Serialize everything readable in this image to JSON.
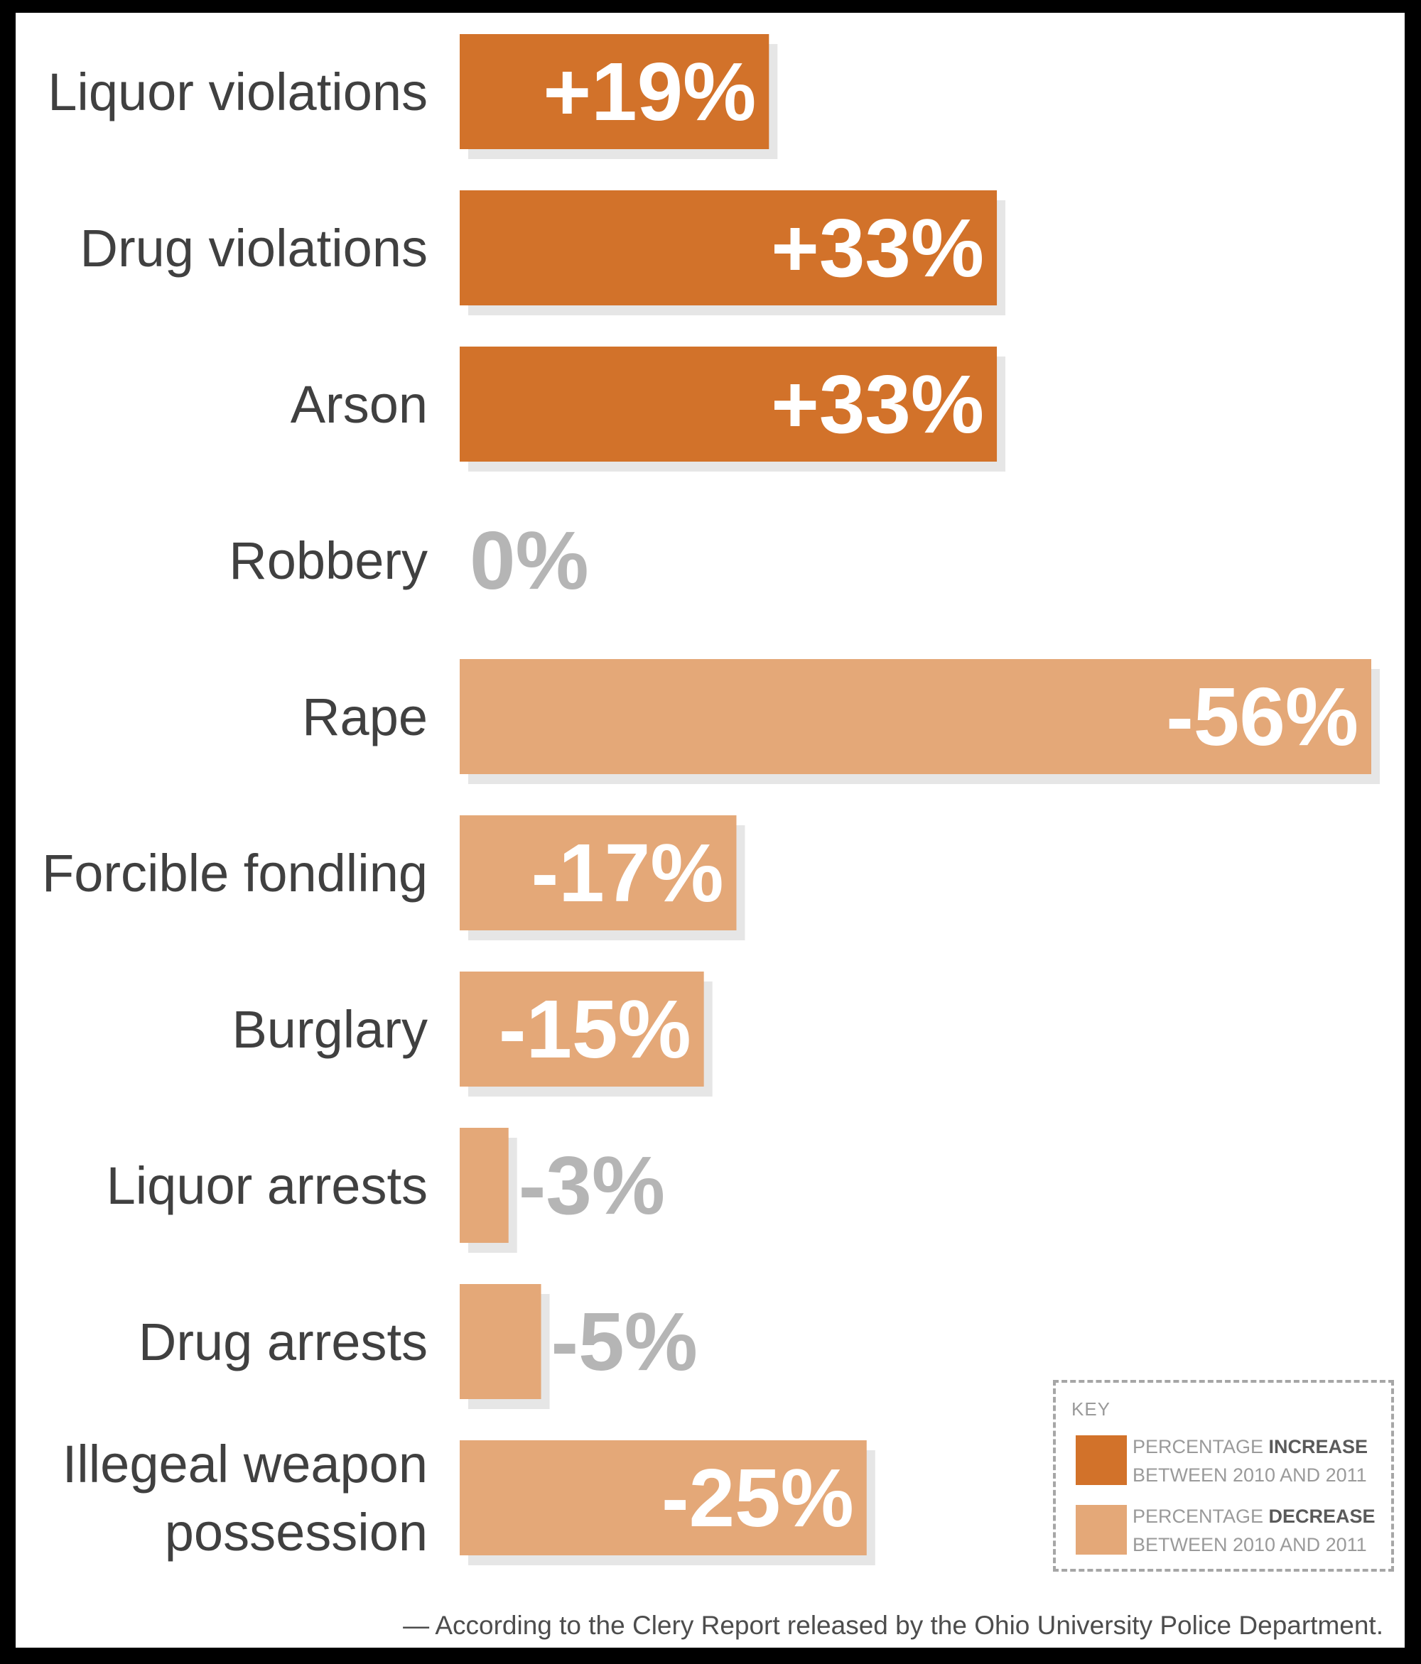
{
  "chart_data": {
    "type": "bar",
    "orientation": "horizontal",
    "categories": [
      "Liquor violations",
      "Drug violations",
      "Arson",
      "Robbery",
      "Rape",
      "Forcible fondling",
      "Burglary",
      "Liquor arrests",
      "Drug arrests",
      "Illegeal weapon possession"
    ],
    "values": [
      19,
      33,
      33,
      0,
      -56,
      -17,
      -15,
      -3,
      -5,
      -25
    ],
    "value_labels": [
      "+19%",
      "+33%",
      "+33%",
      "0%",
      "-56%",
      "-17%",
      "-15%",
      "-3%",
      "-5%",
      "-25%"
    ],
    "colors": {
      "increase": "#D2722A",
      "decrease": "#E4A878",
      "outside_label": "#B5B5B5",
      "inside_label": "#FFFFFF",
      "category_text": "#404040"
    },
    "xlim": [
      0,
      56
    ],
    "grid": false,
    "legend_position": "bottom-right"
  },
  "key": {
    "title": "KEY",
    "increase": {
      "prefix": "PERCENTAGE ",
      "emphasis": "INCREASE",
      "line2": "BETWEEN 2010 AND 2011"
    },
    "decrease": {
      "prefix": "PERCENTAGE ",
      "emphasis": "DECREASE",
      "line2": "BETWEEN 2010 AND 2011"
    }
  },
  "source": "— According to the Clery Report released by the Ohio University Police Department."
}
